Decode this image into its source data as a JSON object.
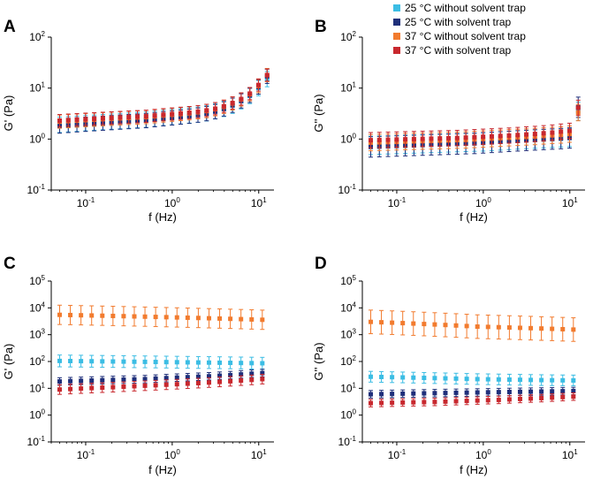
{
  "colors": {
    "s25_without": "#3bbde4",
    "s25_with": "#1f2f7a",
    "s37_without": "#f27b2e",
    "s37_with": "#c8282e"
  },
  "legend": {
    "placement": "top-right",
    "entries": [
      {
        "key": "s25_without",
        "label": "25 °C without solvent trap"
      },
      {
        "key": "s25_with",
        "label": "25 °C with solvent trap"
      },
      {
        "key": "s37_without",
        "label": "37 °C without solvent trap"
      },
      {
        "key": "s37_with",
        "label": "37 °C with solvent trap"
      }
    ]
  },
  "chart_data": [
    {
      "panel": "A",
      "type": "scatter",
      "xscale": "log",
      "yscale": "log",
      "xlim": [
        0.04,
        15
      ],
      "ylim": [
        0.1,
        100
      ],
      "xticks": [
        {
          "base": "10",
          "exp": "-1",
          "value": 0.1
        },
        {
          "base": "10",
          "exp": "0",
          "value": 1
        },
        {
          "base": "10",
          "exp": "1",
          "value": 10
        }
      ],
      "yticks": [
        {
          "base": "10",
          "exp": "-1",
          "value": 0.1
        },
        {
          "base": "10",
          "exp": "0",
          "value": 1
        },
        {
          "base": "10",
          "exp": "1",
          "value": 10
        },
        {
          "base": "10",
          "exp": "2",
          "value": 100
        }
      ],
      "xlabel": "f (Hz)",
      "ylabel": "G' (Pa)",
      "series": [
        {
          "key": "s25_without",
          "f0": 0.05,
          "f1": 12.5,
          "n": 25,
          "y": [
            1.9,
            1.95,
            2.0,
            2.05,
            2.1,
            2.15,
            2.2,
            2.25,
            2.3,
            2.35,
            2.4,
            2.5,
            2.6,
            2.7,
            2.8,
            2.9,
            3.0,
            3.2,
            3.5,
            3.9,
            4.5,
            5.5,
            7,
            10,
            15
          ],
          "err": 0.15
        },
        {
          "key": "s25_with",
          "f0": 0.05,
          "f1": 12.5,
          "n": 25,
          "y": [
            1.8,
            1.85,
            1.9,
            1.95,
            2.0,
            2.05,
            2.1,
            2.15,
            2.2,
            2.25,
            2.3,
            2.4,
            2.5,
            2.6,
            2.7,
            2.8,
            2.95,
            3.15,
            3.45,
            3.9,
            4.6,
            5.6,
            7.2,
            10.5,
            17
          ],
          "err": 0.14
        },
        {
          "key": "s37_without",
          "f0": 0.05,
          "f1": 12.5,
          "n": 25,
          "y": [
            2.2,
            2.25,
            2.3,
            2.35,
            2.4,
            2.45,
            2.5,
            2.55,
            2.6,
            2.65,
            2.7,
            2.8,
            2.9,
            3.0,
            3.1,
            3.2,
            3.35,
            3.55,
            3.85,
            4.3,
            5.0,
            6.0,
            7.6,
            11,
            18
          ],
          "err": 0.13
        },
        {
          "key": "s37_with",
          "f0": 0.05,
          "f1": 12.5,
          "n": 25,
          "y": [
            2.3,
            2.35,
            2.4,
            2.45,
            2.5,
            2.55,
            2.6,
            2.65,
            2.7,
            2.75,
            2.8,
            2.9,
            3.0,
            3.1,
            3.2,
            3.3,
            3.45,
            3.65,
            3.95,
            4.4,
            5.1,
            6.1,
            7.8,
            11.5,
            18
          ],
          "err": 0.12
        }
      ]
    },
    {
      "panel": "B",
      "type": "scatter",
      "xscale": "log",
      "yscale": "log",
      "xlim": [
        0.04,
        15
      ],
      "ylim": [
        0.1,
        100
      ],
      "xticks": [
        {
          "base": "10",
          "exp": "-1",
          "value": 0.1
        },
        {
          "base": "10",
          "exp": "0",
          "value": 1
        },
        {
          "base": "10",
          "exp": "1",
          "value": 10
        }
      ],
      "yticks": [
        {
          "base": "10",
          "exp": "-1",
          "value": 0.1
        },
        {
          "base": "10",
          "exp": "0",
          "value": 1
        },
        {
          "base": "10",
          "exp": "1",
          "value": 10
        },
        {
          "base": "10",
          "exp": "2",
          "value": 100
        }
      ],
      "xlabel": "f (Hz)",
      "ylabel": "G'' (Pa)",
      "series": [
        {
          "key": "s25_without",
          "f0": 0.05,
          "f1": 12.5,
          "n": 25,
          "y": [
            0.75,
            0.76,
            0.77,
            0.78,
            0.79,
            0.8,
            0.81,
            0.82,
            0.83,
            0.84,
            0.85,
            0.86,
            0.87,
            0.88,
            0.9,
            0.92,
            0.94,
            0.96,
            0.98,
            1.0,
            1.02,
            1.04,
            1.06,
            1.08,
            3.5
          ],
          "err": 0.18
        },
        {
          "key": "s25_with",
          "f0": 0.05,
          "f1": 12.5,
          "n": 25,
          "y": [
            0.7,
            0.71,
            0.72,
            0.73,
            0.74,
            0.75,
            0.76,
            0.77,
            0.78,
            0.79,
            0.8,
            0.81,
            0.82,
            0.84,
            0.86,
            0.88,
            0.9,
            0.92,
            0.94,
            0.96,
            0.98,
            1.0,
            1.02,
            1.05,
            4.2
          ],
          "err": 0.2
        },
        {
          "key": "s37_without",
          "f0": 0.05,
          "f1": 12.5,
          "n": 25,
          "y": [
            0.85,
            0.86,
            0.87,
            0.88,
            0.89,
            0.9,
            0.91,
            0.92,
            0.93,
            0.94,
            0.95,
            0.96,
            0.98,
            1.0,
            1.02,
            1.04,
            1.06,
            1.08,
            1.1,
            1.12,
            1.15,
            1.18,
            1.2,
            1.25,
            3.3
          ],
          "err": 0.16
        },
        {
          "key": "s37_with",
          "f0": 0.05,
          "f1": 12.5,
          "n": 25,
          "y": [
            0.95,
            0.96,
            0.97,
            0.98,
            0.99,
            1.0,
            1.01,
            1.02,
            1.03,
            1.04,
            1.05,
            1.07,
            1.09,
            1.11,
            1.13,
            1.15,
            1.17,
            1.2,
            1.23,
            1.26,
            1.3,
            1.34,
            1.4,
            1.45,
            4.1
          ],
          "err": 0.15
        }
      ]
    },
    {
      "panel": "C",
      "type": "scatter",
      "xscale": "log",
      "yscale": "log",
      "xlim": [
        0.04,
        15
      ],
      "ylim": [
        0.1,
        100000
      ],
      "xticks": [
        {
          "base": "10",
          "exp": "-1",
          "value": 0.1
        },
        {
          "base": "10",
          "exp": "0",
          "value": 1
        },
        {
          "base": "10",
          "exp": "1",
          "value": 10
        }
      ],
      "yticks": [
        {
          "base": "10",
          "exp": "-1",
          "value": 0.1
        },
        {
          "base": "10",
          "exp": "0",
          "value": 1
        },
        {
          "base": "10",
          "exp": "1",
          "value": 10
        },
        {
          "base": "10",
          "exp": "2",
          "value": 100
        },
        {
          "base": "10",
          "exp": "3",
          "value": 1000
        },
        {
          "base": "10",
          "exp": "4",
          "value": 10000
        },
        {
          "base": "10",
          "exp": "5",
          "value": 100000
        }
      ],
      "xlabel": "f (Hz)",
      "ylabel": "G' (Pa)",
      "series": [
        {
          "key": "s25_without",
          "f0": 0.05,
          "f1": 11,
          "n": 20,
          "y": [
            105,
            104,
            103,
            102,
            101,
            100,
            99,
            98,
            97,
            96,
            95,
            94,
            93,
            92,
            91,
            90,
            89,
            88,
            87,
            86
          ],
          "err": 0.22
        },
        {
          "key": "s25_with",
          "f0": 0.05,
          "f1": 11,
          "n": 20,
          "y": [
            18,
            18.5,
            19,
            19.5,
            20,
            20.5,
            21,
            21.5,
            22,
            23,
            24,
            25,
            26,
            27,
            28,
            29.5,
            31,
            33,
            35,
            37
          ],
          "err": 0.14
        },
        {
          "key": "s37_without",
          "f0": 0.05,
          "f1": 11,
          "n": 20,
          "y": [
            5500,
            5400,
            5300,
            5200,
            5100,
            5000,
            4900,
            4800,
            4700,
            4600,
            4500,
            4400,
            4300,
            4200,
            4100,
            4000,
            3900,
            3800,
            3700,
            3600
          ],
          "err": 0.36
        },
        {
          "key": "s37_with",
          "f0": 0.05,
          "f1": 11,
          "n": 20,
          "y": [
            9,
            9.4,
            9.8,
            10.2,
            10.6,
            11,
            11.5,
            12,
            12.5,
            13,
            13.6,
            14.2,
            14.9,
            15.6,
            16.4,
            17.3,
            18.3,
            19.4,
            20.6,
            22
          ],
          "err": 0.18
        }
      ]
    },
    {
      "panel": "D",
      "type": "scatter",
      "xscale": "log",
      "yscale": "log",
      "xlim": [
        0.04,
        15
      ],
      "ylim": [
        0.1,
        100000
      ],
      "xticks": [
        {
          "base": "10",
          "exp": "-1",
          "value": 0.1
        },
        {
          "base": "10",
          "exp": "0",
          "value": 1
        },
        {
          "base": "10",
          "exp": "1",
          "value": 10
        }
      ],
      "yticks": [
        {
          "base": "10",
          "exp": "-1",
          "value": 0.1
        },
        {
          "base": "10",
          "exp": "0",
          "value": 1
        },
        {
          "base": "10",
          "exp": "1",
          "value": 10
        },
        {
          "base": "10",
          "exp": "2",
          "value": 100
        },
        {
          "base": "10",
          "exp": "3",
          "value": 1000
        },
        {
          "base": "10",
          "exp": "4",
          "value": 10000
        },
        {
          "base": "10",
          "exp": "5",
          "value": 100000
        }
      ],
      "xlabel": "f (Hz)",
      "ylabel": "G'' (Pa)",
      "series": [
        {
          "key": "s25_without",
          "f0": 0.05,
          "f1": 11,
          "n": 20,
          "y": [
            27,
            26.5,
            26,
            25.5,
            25,
            24.5,
            24,
            23.5,
            23,
            22.5,
            22,
            21.7,
            21.4,
            21.1,
            20.8,
            20.5,
            20.2,
            20,
            19.8,
            19.6
          ],
          "err": 0.2
        },
        {
          "key": "s25_with",
          "f0": 0.05,
          "f1": 11,
          "n": 20,
          "y": [
            6,
            6.1,
            6.2,
            6.3,
            6.4,
            6.5,
            6.6,
            6.7,
            6.8,
            6.9,
            7,
            7.1,
            7.2,
            7.3,
            7.4,
            7.5,
            7.6,
            7.7,
            7.8,
            7.9
          ],
          "err": 0.14
        },
        {
          "key": "s37_without",
          "f0": 0.05,
          "f1": 11,
          "n": 20,
          "y": [
            3000,
            2900,
            2800,
            2700,
            2600,
            2500,
            2400,
            2300,
            2200,
            2100,
            2000,
            1950,
            1900,
            1850,
            1800,
            1750,
            1700,
            1650,
            1600,
            1550
          ],
          "err": 0.44
        },
        {
          "key": "s37_with",
          "f0": 0.05,
          "f1": 11,
          "n": 20,
          "y": [
            2.8,
            2.85,
            2.9,
            2.95,
            3.0,
            3.05,
            3.1,
            3.2,
            3.3,
            3.4,
            3.5,
            3.6,
            3.7,
            3.85,
            4.0,
            4.15,
            4.3,
            4.5,
            4.7,
            4.9
          ],
          "err": 0.14
        }
      ]
    }
  ]
}
